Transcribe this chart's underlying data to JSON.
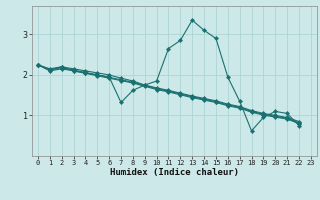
{
  "xlabel": "Humidex (Indice chaleur)",
  "background_color": "#cce8e8",
  "grid_color": "#aed4d4",
  "line_color": "#1a7070",
  "xlim": [
    -0.5,
    23.5
  ],
  "ylim": [
    0.0,
    3.7
  ],
  "yticks": [
    1,
    2,
    3
  ],
  "xticks": [
    0,
    1,
    2,
    3,
    4,
    5,
    6,
    7,
    8,
    9,
    10,
    11,
    12,
    13,
    14,
    15,
    16,
    17,
    18,
    19,
    20,
    21,
    22,
    23
  ],
  "lines": [
    {
      "x": [
        0,
        1,
        2,
        3,
        4,
        5,
        6,
        7,
        8,
        9,
        10,
        11,
        12,
        13,
        14,
        15,
        16,
        17,
        18,
        19,
        20,
        21,
        22
      ],
      "y": [
        2.25,
        2.12,
        2.2,
        2.1,
        2.05,
        2.0,
        1.95,
        1.32,
        1.62,
        1.75,
        1.85,
        2.65,
        2.85,
        3.35,
        3.1,
        2.9,
        1.95,
        1.35,
        0.62,
        0.95,
        1.1,
        1.05,
        0.75
      ]
    },
    {
      "x": [
        0,
        1,
        2,
        3,
        4,
        5,
        6,
        7,
        8,
        9,
        10,
        11,
        12,
        13,
        14,
        15,
        16,
        17,
        18,
        19,
        20,
        21,
        22
      ],
      "y": [
        2.25,
        2.15,
        2.2,
        2.15,
        2.1,
        2.05,
        2.0,
        1.92,
        1.85,
        1.75,
        1.68,
        1.62,
        1.55,
        1.48,
        1.42,
        1.36,
        1.28,
        1.22,
        1.12,
        1.05,
        1.0,
        0.95,
        0.85
      ]
    },
    {
      "x": [
        0,
        1,
        2,
        3,
        4,
        5,
        6,
        7,
        8,
        9,
        10,
        11,
        12,
        13,
        14,
        15,
        16,
        17,
        18,
        19,
        20,
        21,
        22
      ],
      "y": [
        2.25,
        2.12,
        2.18,
        2.12,
        2.06,
        2.0,
        1.94,
        1.88,
        1.82,
        1.74,
        1.66,
        1.6,
        1.53,
        1.46,
        1.4,
        1.34,
        1.26,
        1.2,
        1.1,
        1.03,
        0.98,
        0.93,
        0.82
      ]
    },
    {
      "x": [
        0,
        1,
        2,
        3,
        4,
        5,
        6,
        7,
        8,
        9,
        10,
        11,
        12,
        13,
        14,
        15,
        16,
        17,
        18,
        19,
        20,
        21,
        22
      ],
      "y": [
        2.25,
        2.1,
        2.15,
        2.1,
        2.04,
        1.98,
        1.92,
        1.86,
        1.8,
        1.72,
        1.64,
        1.58,
        1.51,
        1.44,
        1.38,
        1.32,
        1.24,
        1.18,
        1.08,
        1.01,
        0.96,
        0.91,
        0.8
      ]
    }
  ]
}
